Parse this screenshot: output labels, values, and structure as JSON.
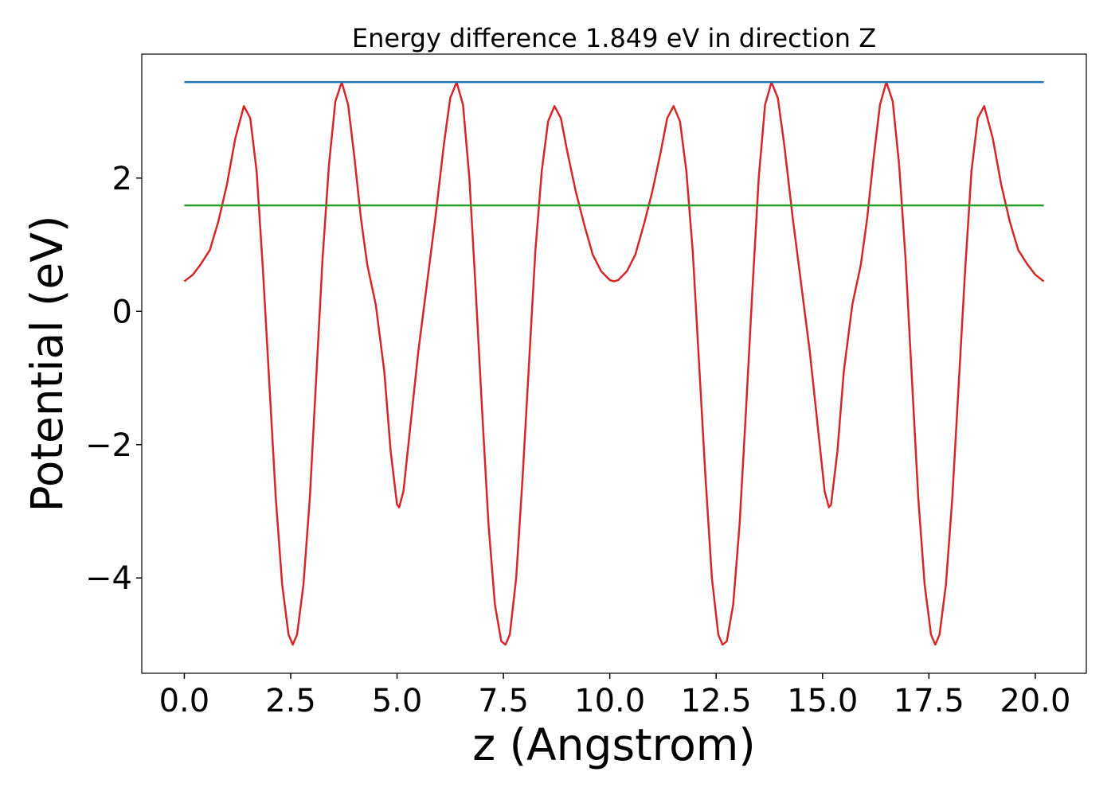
{
  "chart_data": {
    "type": "line",
    "title": "Energy difference 1.849 eV in direction Z",
    "xlabel": "z (Angstrom)",
    "ylabel": "Potential (eV)",
    "xlim": [
      -1.0,
      21.2
    ],
    "ylim": [
      -5.43,
      3.86
    ],
    "xticks": [
      {
        "value": 0,
        "label": "0.0"
      },
      {
        "value": 2.5,
        "label": "2.5"
      },
      {
        "value": 5,
        "label": "5.0"
      },
      {
        "value": 7.5,
        "label": "7.5"
      },
      {
        "value": 10,
        "label": "10.0"
      },
      {
        "value": 12.5,
        "label": "12.5"
      },
      {
        "value": 15,
        "label": "15.0"
      },
      {
        "value": 17.5,
        "label": "17.5"
      },
      {
        "value": 20,
        "label": "20.0"
      }
    ],
    "yticks": [
      {
        "value": -4,
        "label": "−4"
      },
      {
        "value": -2,
        "label": "−2"
      },
      0,
      2
    ],
    "series": [
      {
        "color": "#d62728",
        "x": [
          0.0,
          0.2,
          0.4,
          0.6,
          0.8,
          1.0,
          1.2,
          1.4,
          1.55,
          1.7,
          1.85,
          2.0,
          2.15,
          2.3,
          2.45,
          2.55,
          2.65,
          2.8,
          2.95,
          3.1,
          3.25,
          3.4,
          3.55,
          3.7,
          3.85,
          4.0,
          4.15,
          4.3,
          4.5,
          4.7,
          4.85,
          5.0,
          5.05,
          5.15,
          5.3,
          5.5,
          5.7,
          5.9,
          6.1,
          6.25,
          6.4,
          6.55,
          6.7,
          6.85,
          7.0,
          7.15,
          7.3,
          7.45,
          7.55,
          7.65,
          7.8,
          7.95,
          8.1,
          8.25,
          8.4,
          8.55,
          8.7,
          8.85,
          9.0,
          9.2,
          9.4,
          9.6,
          9.8,
          10.0,
          10.1,
          10.2,
          10.4,
          10.6,
          10.8,
          11.0,
          11.2,
          11.35,
          11.5,
          11.65,
          11.8,
          11.95,
          12.1,
          12.25,
          12.4,
          12.55,
          12.65,
          12.75,
          12.9,
          13.05,
          13.2,
          13.35,
          13.5,
          13.65,
          13.8,
          13.95,
          14.1,
          14.3,
          14.5,
          14.7,
          14.9,
          15.05,
          15.15,
          15.2,
          15.35,
          15.5,
          15.7,
          15.9,
          16.05,
          16.2,
          16.35,
          16.5,
          16.65,
          16.8,
          16.95,
          17.1,
          17.25,
          17.4,
          17.55,
          17.65,
          17.75,
          17.9,
          18.05,
          18.2,
          18.35,
          18.5,
          18.65,
          18.8,
          19.0,
          19.2,
          19.4,
          19.6,
          19.8,
          20.0,
          20.2
        ],
        "values": [
          0.45,
          0.55,
          0.72,
          0.92,
          1.35,
          1.9,
          2.6,
          3.08,
          2.9,
          2.1,
          0.6,
          -1.1,
          -2.8,
          -4.1,
          -4.85,
          -5.0,
          -4.85,
          -4.1,
          -2.8,
          -1.0,
          0.8,
          2.2,
          3.15,
          3.44,
          3.1,
          2.3,
          1.4,
          0.7,
          0.1,
          -0.9,
          -2.1,
          -2.9,
          -2.94,
          -2.7,
          -1.8,
          -0.6,
          0.4,
          1.4,
          2.5,
          3.2,
          3.44,
          3.1,
          2.0,
          0.3,
          -1.5,
          -3.2,
          -4.4,
          -4.95,
          -5.0,
          -4.85,
          -4.0,
          -2.5,
          -0.8,
          0.9,
          2.1,
          2.85,
          3.08,
          2.9,
          2.4,
          1.8,
          1.3,
          0.85,
          0.6,
          0.47,
          0.45,
          0.47,
          0.6,
          0.85,
          1.3,
          1.8,
          2.4,
          2.9,
          3.08,
          2.85,
          2.1,
          0.9,
          -0.8,
          -2.5,
          -4.0,
          -4.85,
          -5.0,
          -4.95,
          -4.4,
          -3.2,
          -1.5,
          0.3,
          2.0,
          3.1,
          3.44,
          3.2,
          2.5,
          1.4,
          0.4,
          -0.6,
          -1.8,
          -2.7,
          -2.94,
          -2.9,
          -2.1,
          -0.9,
          0.1,
          0.7,
          1.4,
          2.3,
          3.1,
          3.44,
          3.15,
          2.2,
          0.8,
          -1.0,
          -2.8,
          -4.1,
          -4.85,
          -5.0,
          -4.85,
          -4.1,
          -2.8,
          -1.1,
          0.6,
          2.1,
          2.9,
          3.08,
          2.6,
          1.9,
          1.35,
          0.92,
          0.72,
          0.55,
          0.45
        ]
      },
      {
        "color": "#1f77b4",
        "x": [
          0.0,
          20.2
        ],
        "values": [
          3.44,
          3.44
        ]
      },
      {
        "color": "#2ca02c",
        "x": [
          0.0,
          20.2
        ],
        "values": [
          1.59,
          1.59
        ]
      }
    ]
  }
}
